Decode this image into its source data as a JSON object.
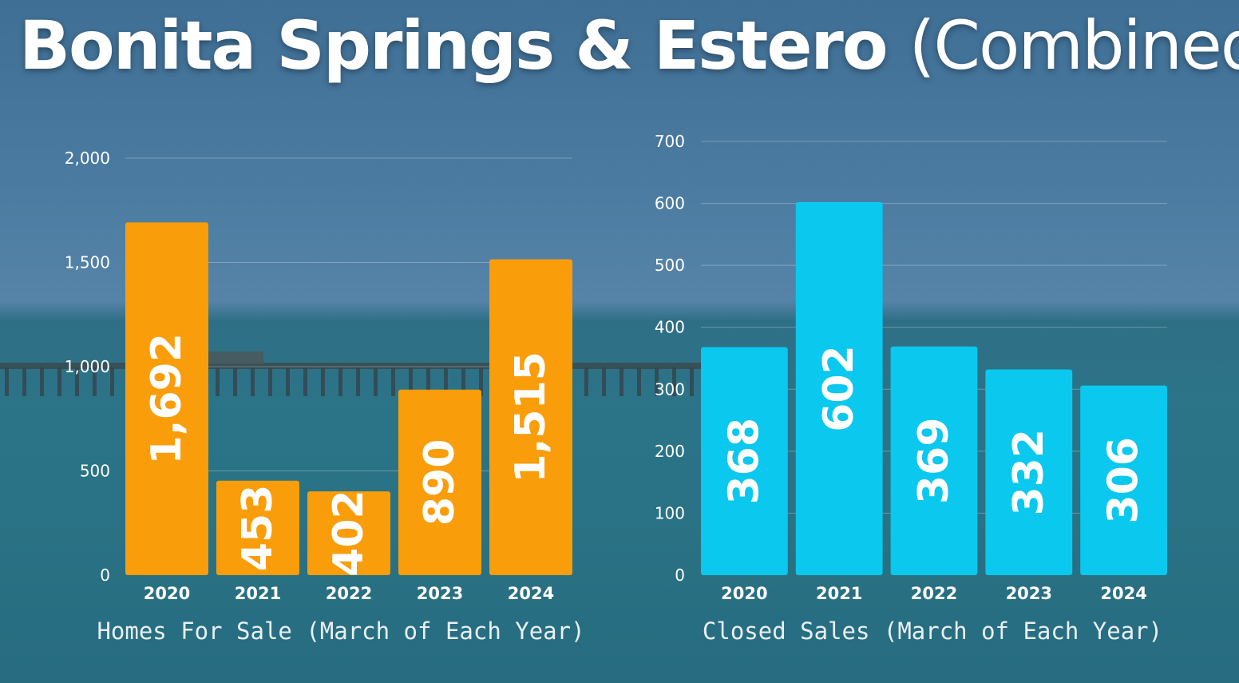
{
  "page": {
    "title_main": "Bonita Springs & Estero",
    "title_sub": "(Combined)"
  },
  "colors": {
    "left_bars": "#f99d0b",
    "right_bars": "#0ac8ee",
    "text": "#ffffff"
  },
  "chart_data": [
    {
      "type": "bar",
      "categories": [
        "2020",
        "2021",
        "2022",
        "2023",
        "2024"
      ],
      "values": [
        1692,
        453,
        402,
        890,
        1515
      ],
      "value_labels": [
        "1,692",
        "453",
        "402",
        "890",
        "1,515"
      ],
      "title": "",
      "xlabel": "Homes For Sale (March of Each Year)",
      "ylabel": "",
      "ylim": [
        0,
        2000
      ],
      "yticks": [
        0,
        500,
        1000,
        1500,
        2000
      ],
      "ytick_labels": [
        "0",
        "500",
        "1,000",
        "1,500",
        "2,000"
      ],
      "grid": true,
      "legend": "none"
    },
    {
      "type": "bar",
      "categories": [
        "2020",
        "2021",
        "2022",
        "2023",
        "2024"
      ],
      "values": [
        368,
        602,
        369,
        332,
        306
      ],
      "value_labels": [
        "368",
        "602",
        "369",
        "332",
        "306"
      ],
      "title": "",
      "xlabel": "Closed Sales (March of Each Year)",
      "ylabel": "",
      "ylim": [
        0,
        700
      ],
      "yticks": [
        0,
        100,
        200,
        300,
        400,
        500,
        600,
        700
      ],
      "ytick_labels": [
        "0",
        "100",
        "200",
        "300",
        "400",
        "500",
        "600",
        "700"
      ],
      "grid": true,
      "legend": "none"
    }
  ]
}
